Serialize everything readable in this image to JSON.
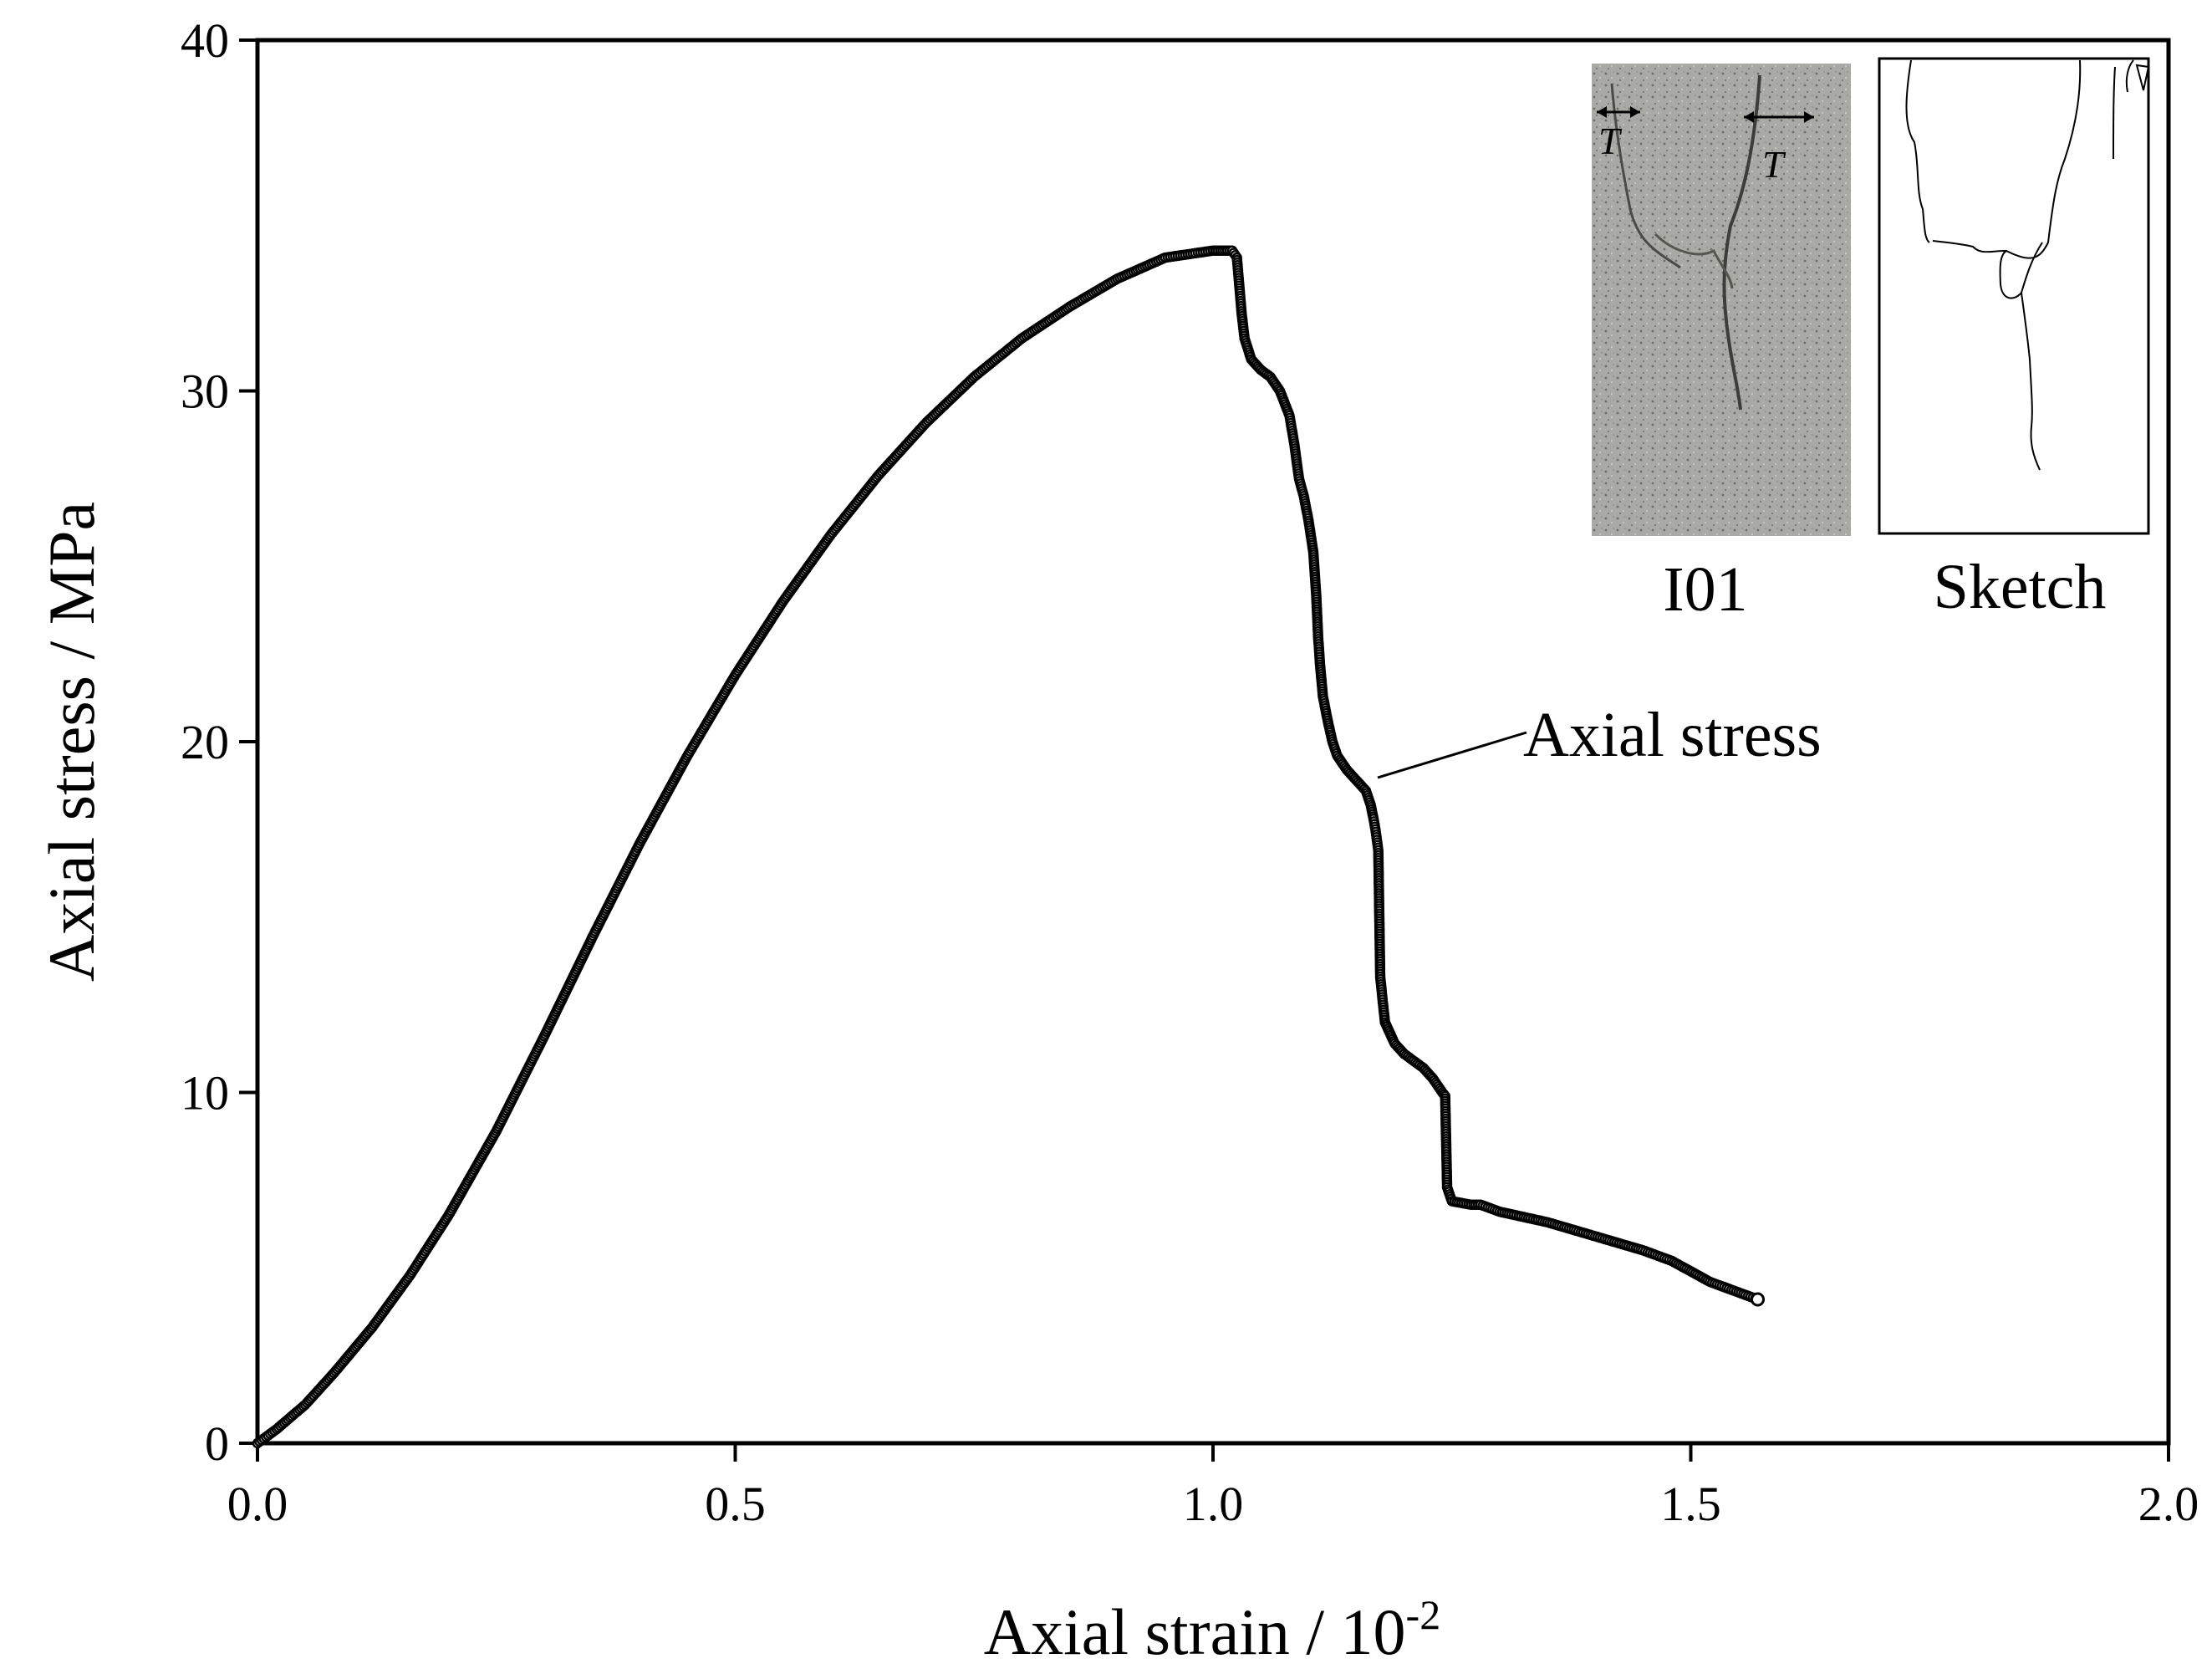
{
  "chart_data": {
    "type": "scatter",
    "xlabel": "Axial strain / 10",
    "xlabel_exponent": "-2",
    "ylabel": "Axial stress / MPa",
    "xlim": [
      0.0,
      2.0
    ],
    "ylim": [
      0,
      40
    ],
    "xticks": [
      "0.0",
      "0.5",
      "1.0",
      "1.5",
      "2.0"
    ],
    "yticks": [
      "0",
      "10",
      "20",
      "30",
      "40"
    ],
    "grid": false,
    "series": [
      {
        "name": "Axial stress",
        "marker": "open-circle",
        "color": "#000000",
        "x": [
          0.0,
          0.02,
          0.05,
          0.08,
          0.12,
          0.16,
          0.2,
          0.25,
          0.3,
          0.35,
          0.4,
          0.45,
          0.5,
          0.55,
          0.6,
          0.65,
          0.7,
          0.75,
          0.8,
          0.85,
          0.9,
          0.95,
          1.0,
          1.02,
          1.025,
          1.03,
          1.033,
          1.04,
          1.05,
          1.06,
          1.07,
          1.08,
          1.085,
          1.09,
          1.095,
          1.1,
          1.105,
          1.108,
          1.11,
          1.112,
          1.115,
          1.12,
          1.125,
          1.13,
          1.14,
          1.15,
          1.16,
          1.165,
          1.168,
          1.17,
          1.173,
          1.175,
          1.178,
          1.18,
          1.185,
          1.19,
          1.2,
          1.21,
          1.22,
          1.23,
          1.24,
          1.243,
          1.245,
          1.25,
          1.26,
          1.27,
          1.28,
          1.3,
          1.35,
          1.4,
          1.45,
          1.48,
          1.5,
          1.52,
          1.54,
          1.56,
          1.57
        ],
        "y": [
          0.0,
          0.4,
          1.1,
          2.0,
          3.3,
          4.8,
          6.5,
          8.9,
          11.6,
          14.4,
          17.1,
          19.6,
          21.9,
          24.0,
          25.9,
          27.6,
          29.1,
          30.4,
          31.5,
          32.4,
          33.2,
          33.8,
          34.0,
          34.0,
          33.8,
          32.2,
          31.5,
          30.9,
          30.6,
          30.4,
          30.0,
          29.3,
          28.5,
          27.5,
          27.0,
          26.3,
          25.4,
          24.2,
          23.0,
          22.2,
          21.3,
          20.6,
          20.0,
          19.6,
          19.2,
          18.9,
          18.6,
          18.2,
          17.8,
          17.5,
          16.9,
          13.3,
          12.5,
          12.0,
          11.7,
          11.4,
          11.1,
          10.9,
          10.7,
          10.4,
          10.0,
          9.9,
          7.3,
          6.9,
          6.85,
          6.8,
          6.8,
          6.6,
          6.3,
          5.9,
          5.5,
          5.2,
          4.9,
          4.6,
          4.4,
          4.2,
          4.1
        ]
      }
    ],
    "annotations": [
      {
        "text": "Axial stress",
        "points_to": [
          1.165,
          19.0
        ]
      }
    ]
  },
  "insets": {
    "photo": {
      "label": "I01",
      "marker_text": "T"
    },
    "sketch": {
      "label": "Sketch"
    }
  }
}
